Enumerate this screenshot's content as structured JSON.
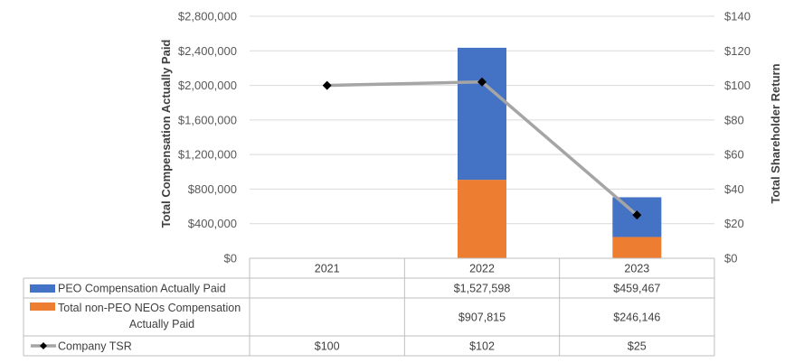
{
  "chart_data": {
    "type": "bar",
    "stacked": true,
    "categories": [
      "2021",
      "2022",
      "2023"
    ],
    "series": [
      {
        "name": "Total non-PEO NEOs Compensation Actually Paid",
        "axis": "left",
        "color": "#ED7D31",
        "values": [
          null,
          907815,
          246146
        ],
        "labels": [
          "",
          "$907,815",
          "$246,146"
        ]
      },
      {
        "name": "PEO Compensation Actually Paid",
        "axis": "left",
        "color": "#4472C4",
        "values": [
          null,
          1527598,
          459467
        ],
        "labels": [
          "",
          "$1,527,598",
          "$459,467"
        ]
      },
      {
        "name": "Company TSR",
        "axis": "right",
        "type": "line",
        "color": "#A5A5A5",
        "marker_color": "#000000",
        "values": [
          100,
          102,
          25
        ],
        "labels": [
          "$100",
          "$102",
          "$25"
        ]
      }
    ],
    "legend_table_order": [
      1,
      0,
      2
    ],
    "legend_table_labels": {
      "1": [
        "PEO Compensation Actually Paid"
      ],
      "0": [
        "Total non-PEO NEOs Compensation",
        "Actually Paid"
      ],
      "2": [
        "Company TSR"
      ]
    },
    "left_axis": {
      "title": "Total Compensation Actually Paid",
      "ylim": [
        0,
        2800000
      ],
      "ticks": [
        0,
        400000,
        800000,
        1200000,
        1600000,
        2000000,
        2400000,
        2800000
      ],
      "tick_labels": [
        "$0",
        "$400,000",
        "$800,000",
        "$1,200,000",
        "$1,600,000",
        "$2,000,000",
        "$2,400,000",
        "$2,800,000"
      ]
    },
    "right_axis": {
      "title": "Total Shareholder Return",
      "ylim": [
        0,
        140
      ],
      "ticks": [
        0,
        20,
        40,
        60,
        80,
        100,
        120,
        140
      ],
      "tick_labels": [
        "$0",
        "$20",
        "$40",
        "$60",
        "$80",
        "$100",
        "$120",
        "$140"
      ]
    },
    "grid": true,
    "legend": "data-table"
  }
}
